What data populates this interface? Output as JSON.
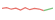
{
  "chart_data": {
    "type": "line",
    "tick_labels": false,
    "x": [
      0,
      1,
      2,
      3,
      4,
      5,
      6,
      7,
      8,
      9,
      10,
      11
    ],
    "xlim": [
      0,
      11
    ],
    "ylim": [
      0,
      10
    ],
    "series": [
      {
        "color": "#e8736b",
        "values": [
          6,
          6.5,
          5.5,
          6.2,
          5,
          6.4,
          5.2,
          6,
          5.6,
          4.6,
          null,
          null
        ]
      },
      {
        "color": "#7cc47f",
        "values": [
          null,
          null,
          null,
          null,
          null,
          null,
          null,
          null,
          null,
          4.6,
          5.4,
          6.2
        ]
      }
    ]
  }
}
